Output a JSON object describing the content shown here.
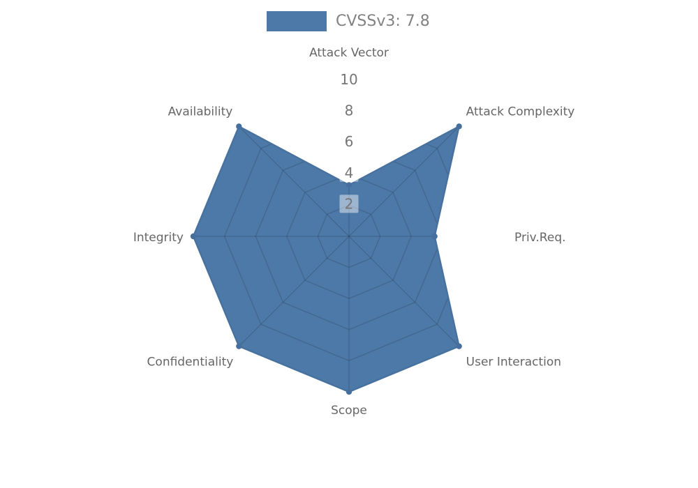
{
  "page": {
    "background": "#ffffff"
  },
  "legend": {
    "label": "CVSSv3: 7.8",
    "swatch_color": "#4d79a8"
  },
  "chart_data": {
    "type": "radar",
    "title": "CVSSv3: 7.8",
    "score": "7.8",
    "categories": [
      "Attack Vector",
      "Attack Complexity",
      "Priv.Req.",
      "User Interaction",
      "Scope",
      "Confidentiality",
      "Integrity",
      "Availability"
    ],
    "series": [
      {
        "name": "CVSSv3: 7.8",
        "values": [
          3.3,
          10,
          5.5,
          10,
          10,
          10,
          10,
          10
        ]
      }
    ],
    "rlim": [
      0,
      10
    ],
    "ticks": [
      2,
      4,
      6,
      8,
      10
    ],
    "grid_shape": "polygon",
    "legend_position": "top",
    "colors": {
      "fill": "#4d79a8",
      "stroke": "#47719e",
      "marker": "#476f9e",
      "grid": "rgba(0,0,0,0.13)",
      "tick_box": "rgba(255,255,255,0.45)",
      "tick_text": "#757575",
      "axis_label": "#666666",
      "legend_text": "#828282"
    }
  }
}
